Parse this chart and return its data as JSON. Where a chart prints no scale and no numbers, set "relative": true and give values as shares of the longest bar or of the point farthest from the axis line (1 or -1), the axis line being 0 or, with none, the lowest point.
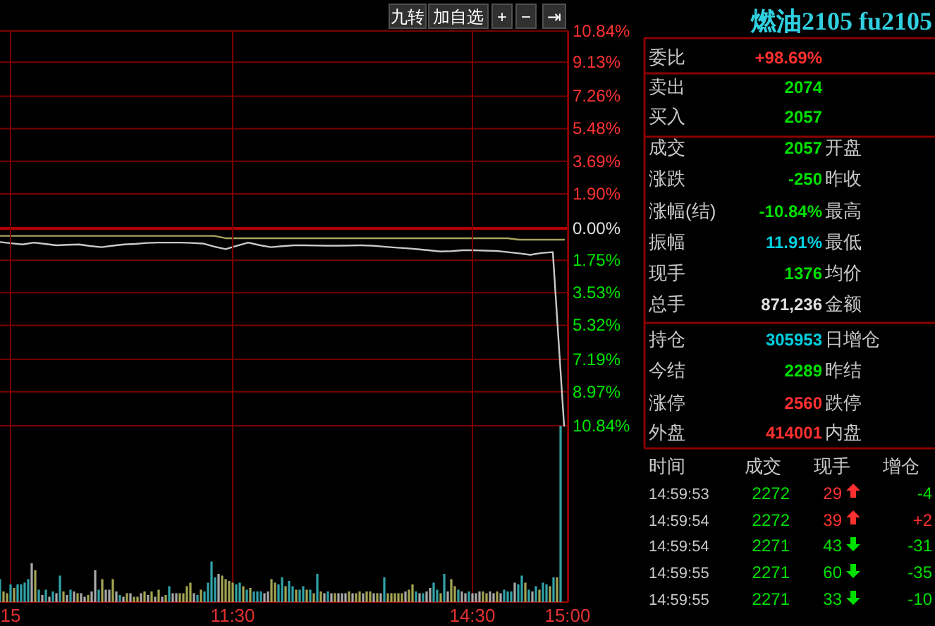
{
  "chart_data": [
    {
      "type": "line",
      "tick_labels": "y",
      "grid": "y",
      "marker": "none",
      "line_style": "solid",
      "ylim": [
        -10.84,
        10.84
      ],
      "ref_lines": [
        {
          "axis": "y",
          "value": 0,
          "color": "#b00000"
        }
      ],
      "categories": [
        null,
        null,
        null,
        null,
        null,
        null,
        null,
        null,
        null,
        null,
        null,
        null,
        null,
        null,
        null,
        null,
        null,
        null,
        null,
        null,
        null,
        null,
        null,
        null,
        null,
        null,
        null,
        null,
        null,
        null,
        null,
        null,
        null,
        null,
        null,
        null,
        null,
        null,
        null,
        null,
        null,
        null,
        null,
        null,
        null,
        null,
        null,
        null,
        null,
        null,
        null
      ],
      "yticks": [
        {
          "value": 10.84,
          "label": "10.84%"
        },
        {
          "value": 9.13,
          "label": "9.13%"
        },
        {
          "value": 7.26,
          "label": "7.26%"
        },
        {
          "value": 5.48,
          "label": "5.48%"
        },
        {
          "value": 3.69,
          "label": "3.69%"
        },
        {
          "value": 1.9,
          "label": "1.90%"
        },
        {
          "value": 0,
          "label": "0.00%"
        },
        {
          "value": -1.75,
          "label": "1.75%"
        },
        {
          "value": -3.53,
          "label": "3.53%"
        },
        {
          "value": -5.32,
          "label": "5.32%"
        },
        {
          "value": -7.19,
          "label": "7.19%"
        },
        {
          "value": -8.97,
          "label": "8.97%"
        },
        {
          "value": -10.84,
          "label": "10.84%"
        }
      ],
      "series": [
        {
          "color": "#c8c8c8",
          "values": [
            -0.75,
            -0.82,
            -0.88,
            -0.78,
            -0.85,
            -0.93,
            -0.9,
            -0.88,
            -0.97,
            -1.03,
            -0.95,
            -0.88,
            -0.85,
            -0.8,
            -0.78,
            -0.78,
            -0.78,
            -0.8,
            -0.83,
            -1.0,
            -1.14,
            -0.95,
            -0.78,
            -0.92,
            -1.03,
            -0.98,
            -0.93,
            -0.93,
            -0.94,
            -0.95,
            -0.95,
            -0.94,
            -0.93,
            -0.95,
            -1.0,
            -1.05,
            -1.09,
            -1.14,
            -1.2,
            -1.27,
            -1.25,
            -1.2,
            -1.2,
            -1.22,
            -1.24,
            -1.3,
            -1.37,
            -1.45,
            -1.35,
            -1.3,
            -10.84
          ]
        },
        {
          "color": "#a8a460",
          "values": [
            -0.41,
            -0.41,
            -0.41,
            -0.41,
            -0.41,
            -0.41,
            -0.41,
            -0.41,
            -0.41,
            -0.41,
            -0.41,
            -0.41,
            -0.41,
            -0.41,
            -0.41,
            -0.41,
            -0.41,
            -0.41,
            -0.41,
            -0.41,
            -0.54,
            -0.54,
            -0.54,
            -0.54,
            -0.54,
            -0.54,
            -0.54,
            -0.54,
            -0.54,
            -0.54,
            -0.54,
            -0.54,
            -0.54,
            -0.54,
            -0.54,
            -0.54,
            -0.54,
            -0.54,
            -0.54,
            -0.54,
            -0.54,
            -0.54,
            -0.54,
            -0.54,
            -0.54,
            -0.54,
            -0.62,
            -0.62,
            -0.62,
            -0.62,
            -0.62
          ]
        }
      ]
    },
    {
      "type": "bar",
      "relative": true,
      "tick_labels": "x",
      "grid": "x",
      "categories": [
        null,
        null,
        null,
        "15",
        null,
        null,
        null,
        null,
        null,
        null,
        null,
        null,
        null,
        null,
        null,
        null,
        null,
        null,
        null,
        null,
        null,
        null,
        null,
        null,
        null,
        null,
        null,
        null,
        null,
        null,
        null,
        null,
        null,
        null,
        null,
        null,
        null,
        null,
        null,
        null,
        null,
        null,
        null,
        null,
        null,
        null,
        null,
        null,
        null,
        null,
        null,
        null,
        null,
        null,
        null,
        null,
        null,
        null,
        null,
        null,
        null,
        null,
        null,
        null,
        null,
        null,
        "11:30",
        null,
        null,
        null,
        null,
        null,
        null,
        null,
        null,
        null,
        null,
        null,
        null,
        null,
        null,
        null,
        null,
        null,
        null,
        null,
        null,
        null,
        null,
        null,
        null,
        null,
        null,
        null,
        null,
        null,
        null,
        null,
        null,
        null,
        null,
        null,
        null,
        null,
        null,
        null,
        null,
        null,
        null,
        null,
        null,
        null,
        null,
        null,
        null,
        null,
        null,
        null,
        null,
        null,
        null,
        null,
        null,
        null,
        null,
        null,
        null,
        null,
        null,
        null,
        null,
        null,
        null,
        null,
        "14:30",
        null,
        null,
        null,
        null,
        null,
        null,
        null,
        null,
        null,
        null,
        null,
        null,
        null,
        null,
        null,
        null,
        null,
        null,
        null,
        null,
        null,
        null,
        null,
        null,
        null,
        null,
        "15:00"
      ],
      "values": [
        0.13,
        0.06,
        0.05,
        0.1,
        0.08,
        0.1,
        0.1,
        0.11,
        0.13,
        0.22,
        0.18,
        0.07,
        0.04,
        0.07,
        0.03,
        0.06,
        0.05,
        0.15,
        0.06,
        0.04,
        0.07,
        0.06,
        0.05,
        0.05,
        0.03,
        0.04,
        0.06,
        0.18,
        0.07,
        0.13,
        0.07,
        0.07,
        0.13,
        0.06,
        0.04,
        0.03,
        0.05,
        0.05,
        0.03,
        0.03,
        0.05,
        0.06,
        0.04,
        0.06,
        0.03,
        0.07,
        0.03,
        0.04,
        0.09,
        0.05,
        0.05,
        0.05,
        0.05,
        0.09,
        0.11,
        0.05,
        0.04,
        0.07,
        0.06,
        0.11,
        0.23,
        0.14,
        0.16,
        0.15,
        0.13,
        0.12,
        0.11,
        0.1,
        0.11,
        0.09,
        0.07,
        0.08,
        0.06,
        0.06,
        0.06,
        0.05,
        0.06,
        0.13,
        0.11,
        0.1,
        0.14,
        0.09,
        0.12,
        0.09,
        0.07,
        0.07,
        0.09,
        0.07,
        0.07,
        0.05,
        0.16,
        0.06,
        0.05,
        0.06,
        0.05,
        0.05,
        0.05,
        0.05,
        0.05,
        0.06,
        0.05,
        0.05,
        0.06,
        0.05,
        0.06,
        0.06,
        0.05,
        0.05,
        0.05,
        0.14,
        0.05,
        0.05,
        0.05,
        0.05,
        0.05,
        0.06,
        0.07,
        0.1,
        0.06,
        0.05,
        0.05,
        0.06,
        0.08,
        0.11,
        0.07,
        0.05,
        0.16,
        0.06,
        0.13,
        0.09,
        0.07,
        0.06,
        0.05,
        0.06,
        0.05,
        0.05,
        0.06,
        0.06,
        0.05,
        0.06,
        0.05,
        0.06,
        0.05,
        0.07,
        0.06,
        0.06,
        0.11,
        0.1,
        0.15,
        0.11,
        0.07,
        0.06,
        0.09,
        0.07,
        0.11,
        0.1,
        0.09,
        0.14,
        0.14,
        1,
        null,
        null
      ],
      "colors": [
        "#31a3a8",
        "#a3a552",
        "#a3a552",
        "#31a3a8",
        "#a3a552",
        "#31a3a8",
        "#31a3a8",
        "#31a3a8",
        "#31a3a8",
        "#a9a9a9",
        "#a3a552",
        "#31a3a8",
        "#a9a9a9",
        "#31a3a8",
        "#a9a9a9",
        "#31a3a8",
        "#a9a9a9",
        "#31a3a8",
        "#a3a552",
        "#a9a9a9",
        "#31a3a8",
        "#a9a9a9",
        "#a3a552",
        "#a9a9a9",
        "#a9a9a9",
        "#a3a552",
        "#a9a9a9",
        "#a9a9a9",
        "#31a3a8",
        "#a3a552",
        "#a9a9a9",
        "#a9a9a9",
        "#a3a552",
        "#a9a9a9",
        "#31a3a8",
        "#a9a9a9",
        "#a3a552",
        "#a9a9a9",
        "#a3a552",
        "#a3a552",
        "#a9a9a9",
        "#a3a552",
        "#a9a9a9",
        "#a3a552",
        "#a9a9a9",
        "#a3a552",
        "#a9a9a9",
        "#a3a552",
        "#31a3a8",
        "#a9a9a9",
        "#a9a9a9",
        "#a3a552",
        "#a3a552",
        "#a3a552",
        "#a3a552",
        "#a9a9a9",
        "#31a3a8",
        "#a3a552",
        "#31a3a8",
        "#31a3a8",
        "#31a3a8",
        "#31a3a8",
        "#a9a9a9",
        "#a3a552",
        "#a3a552",
        "#a3a552",
        "#a3a552",
        "#31a3a8",
        "#31a3a8",
        "#a3a552",
        "#31a3a8",
        "#a3a552",
        "#31a3a8",
        "#31a3a8",
        "#31a3a8",
        "#a9a9a9",
        "#a9a9a9",
        "#a3a552",
        "#a3a552",
        "#31a3a8",
        "#31a3a8",
        "#a3a552",
        "#31a3a8",
        "#31a3a8",
        "#a3a552",
        "#31a3a8",
        "#31a3a8",
        "#a3a552",
        "#31a3a8",
        "#a3a552",
        "#31a3a8",
        "#a3a552",
        "#a9a9a9",
        "#31a3a8",
        "#a9a9a9",
        "#a3a552",
        "#a9a9a9",
        "#a9a9a9",
        "#a9a9a9",
        "#a3a552",
        "#a9a9a9",
        "#a3a552",
        "#a3a552",
        "#a9a9a9",
        "#a3a552",
        "#a3a552",
        "#a9a9a9",
        "#a3a552",
        "#a9a9a9",
        "#31a3a8",
        "#a3a552",
        "#a3a552",
        "#a3a552",
        "#a3a552",
        "#a3a552",
        "#a9a9a9",
        "#a3a552",
        "#a3a552",
        "#31a3a8",
        "#a9a9a9",
        "#31a3a8",
        "#a9a9a9",
        "#a9a9a9",
        "#31a3a8",
        "#31a3a8",
        "#a3a552",
        "#31a3a8",
        "#a9a9a9",
        "#a3a552",
        "#a3a552",
        "#31a3a8",
        "#a9a9a9",
        "#a9a9a9",
        "#31a3a8",
        "#a9a9a9",
        "#a9a9a9",
        "#a9a9a9",
        "#a3a552",
        "#a3a552",
        "#a9a9a9",
        "#a9a9a9",
        "#a3a552",
        "#a9a9a9",
        "#31a3a8",
        "#31a3a8",
        "#31a3a8",
        "#a9a9a9",
        "#31a3a8",
        "#31a3a8",
        "#a3a552",
        "#31a3a8",
        "#a9a9a9",
        "#31a3a8",
        "#a3a552",
        "#31a3a8",
        "#31a3a8",
        "#a3a552",
        "#31a3a8",
        "#a3a552",
        "#31a3a8",
        null,
        null
      ]
    },
    {
      "type": "other",
      "title": "燃油2105 fu2105",
      "annotations": [
        "九转",
        "加自选",
        "+",
        "−",
        "⇥",
        "委比",
        "+98.69%",
        "卖出",
        "2074",
        "买入",
        "2057",
        "成交",
        "2057",
        "开盘",
        "涨跌",
        "-250",
        "昨收",
        "涨幅(结)",
        "-10.84%",
        "最高",
        "振幅",
        "11.91%",
        "最低",
        "现手",
        "1376",
        "均价",
        "总手",
        "871,236",
        "金额",
        "持仓",
        "305953",
        "日增仓",
        "今结",
        "2289",
        "昨结",
        "涨停",
        "2560",
        "跌停",
        "外盘",
        "414001",
        "内盘",
        "时间",
        "成交",
        "现手",
        "增仓",
        "14:59:53",
        "2272",
        "29",
        "-4",
        "14:59:54",
        "2272",
        "39",
        "+2",
        "14:59:54",
        "2271",
        "43",
        "-31",
        "14:59:55",
        "2271",
        "60",
        "-35",
        "14:59:55",
        "2271",
        "33",
        "-10"
      ]
    }
  ]
}
